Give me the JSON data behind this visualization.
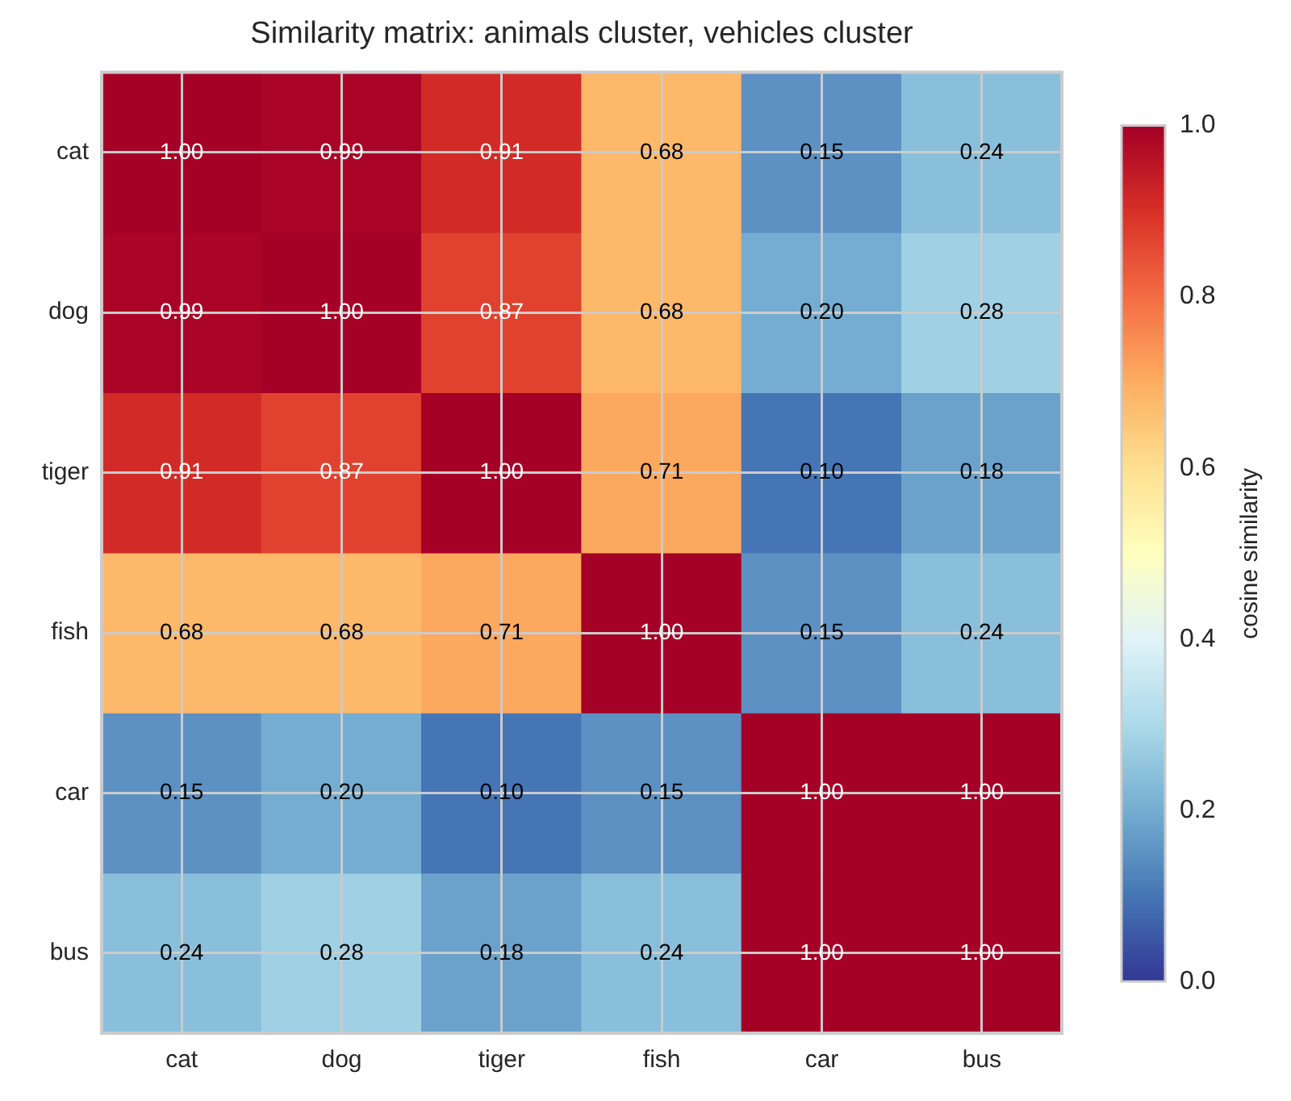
{
  "chart_data": {
    "type": "heatmap",
    "title": "Similarity matrix: animals cluster, vehicles cluster",
    "categories": [
      "cat",
      "dog",
      "tiger",
      "fish",
      "car",
      "bus"
    ],
    "y_categories": [
      "cat",
      "dog",
      "tiger",
      "fish",
      "car",
      "bus"
    ],
    "cells": [
      [
        1.0,
        0.99,
        0.91,
        0.68,
        0.15,
        0.24
      ],
      [
        0.99,
        1.0,
        0.87,
        0.68,
        0.2,
        0.28
      ],
      [
        0.91,
        0.87,
        1.0,
        0.71,
        0.1,
        0.18
      ],
      [
        0.68,
        0.68,
        0.71,
        1.0,
        0.15,
        0.24
      ],
      [
        0.15,
        0.2,
        0.1,
        0.15,
        1.0,
        1.0
      ],
      [
        0.24,
        0.28,
        0.18,
        0.24,
        1.0,
        1.0
      ]
    ],
    "cell_labels": [
      [
        "1.00",
        "0.99",
        "0.91",
        "0.68",
        "0.15",
        "0.24"
      ],
      [
        "0.99",
        "1.00",
        "0.87",
        "0.68",
        "0.20",
        "0.28"
      ],
      [
        "0.91",
        "0.87",
        "1.00",
        "0.71",
        "0.10",
        "0.18"
      ],
      [
        "0.68",
        "0.68",
        "0.71",
        "1.00",
        "0.15",
        "0.24"
      ],
      [
        "0.15",
        "0.20",
        "0.10",
        "0.15",
        "1.00",
        "1.00"
      ],
      [
        "0.24",
        "0.28",
        "0.18",
        "0.24",
        "1.00",
        "1.00"
      ]
    ],
    "clabel": "cosine similarity",
    "clim": [
      0,
      1
    ],
    "cticks": [
      {
        "value": 0,
        "label": "0.0"
      },
      {
        "value": 0.2,
        "label": "0.2"
      },
      {
        "value": 0.4,
        "label": "0.4"
      },
      {
        "value": 0.6,
        "label": "0.6"
      },
      {
        "value": 0.8,
        "label": "0.8"
      },
      {
        "value": 1,
        "label": "1.0"
      }
    ],
    "grid": true
  }
}
